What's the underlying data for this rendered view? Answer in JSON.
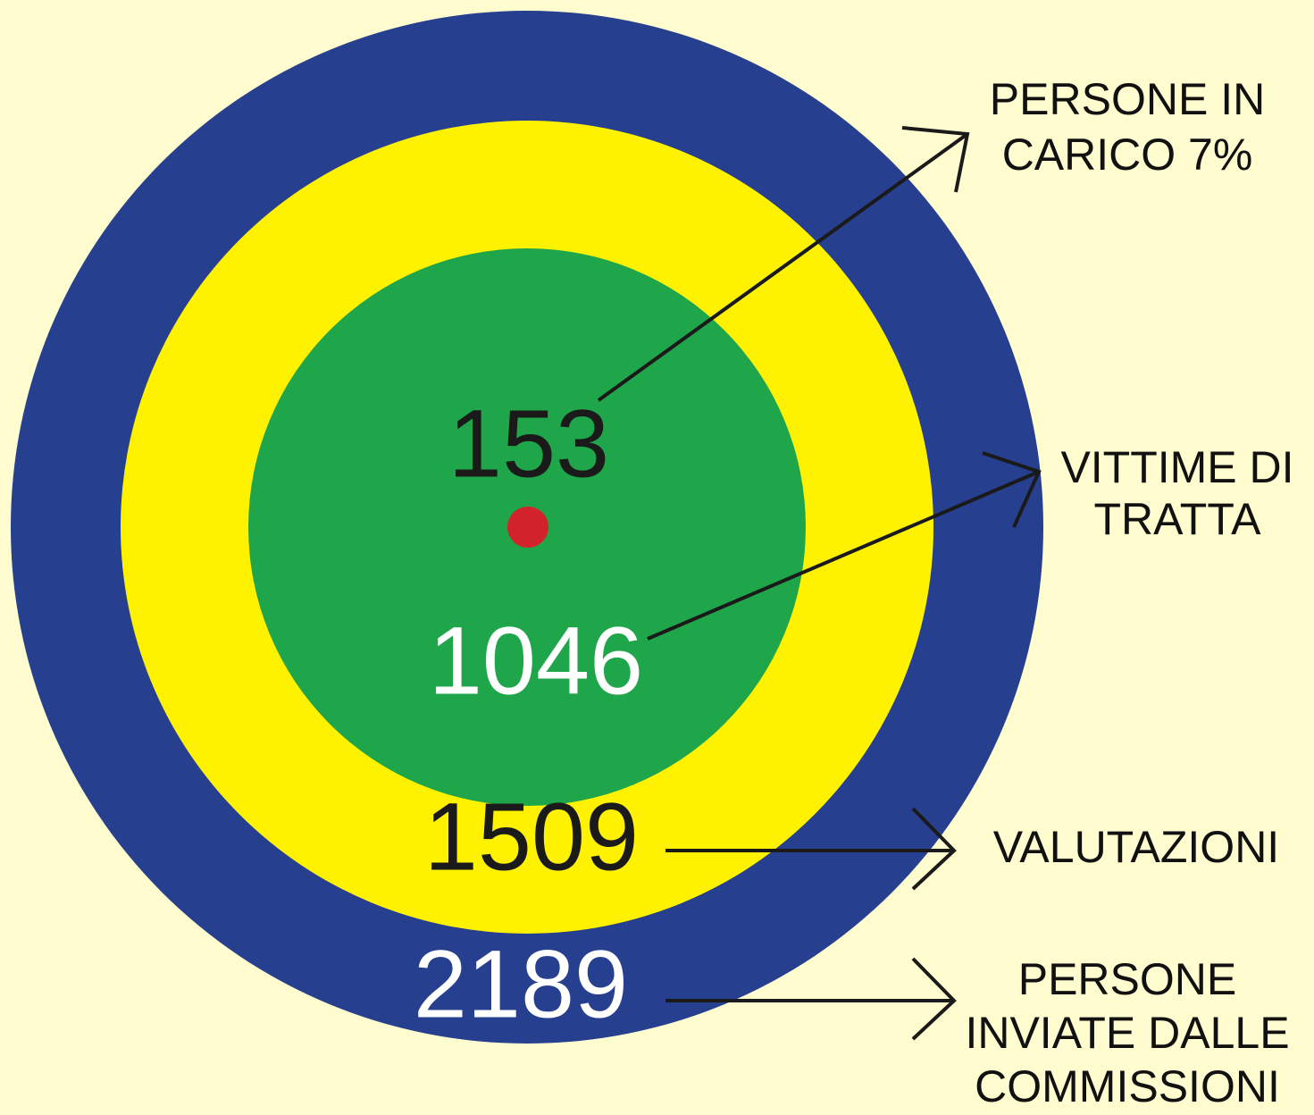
{
  "levels": [
    {
      "value": "153",
      "label_lines": [
        "PERSONE IN",
        "CARICO 7%"
      ]
    },
    {
      "value": "1046",
      "label_lines": [
        "VITTIME DI",
        "TRATTA"
      ]
    },
    {
      "value": "1509",
      "label_lines": [
        "VALUTAZIONI"
      ]
    },
    {
      "value": "2189",
      "label_lines": [
        "PERSONE",
        "INVIATE DALLE",
        "COMMISSIONI"
      ]
    }
  ]
}
